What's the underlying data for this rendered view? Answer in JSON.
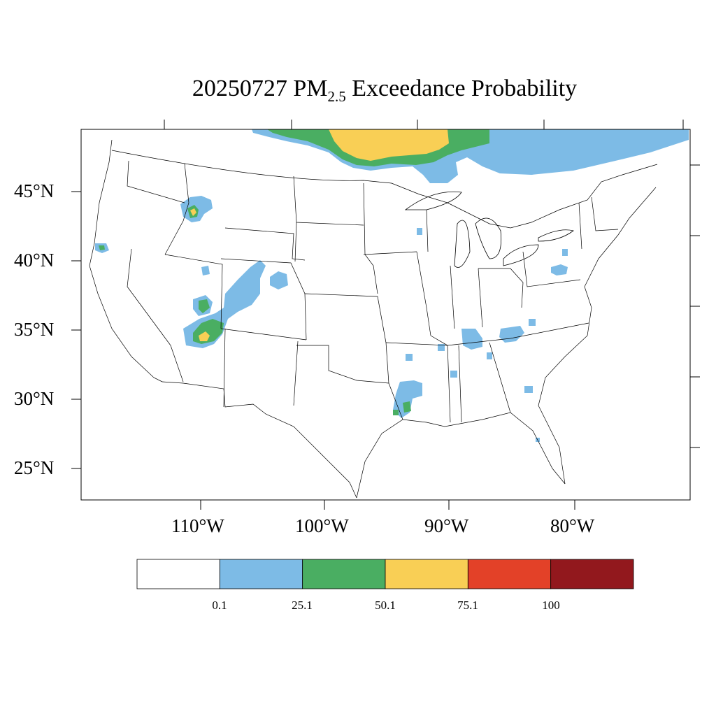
{
  "title": {
    "prefix": "20250727 PM",
    "subscript": "2.5",
    "suffix": " Exceedance Probability"
  },
  "lat_labels": [
    "45°N",
    "40°N",
    "35°N",
    "30°N",
    "25°N"
  ],
  "lon_labels": [
    "110°W",
    "100°W",
    "90°W",
    "80°W"
  ],
  "legend": {
    "bins": [
      {
        "color": "#ffffff"
      },
      {
        "color": "#7dbbe6"
      },
      {
        "color": "#4aae62"
      },
      {
        "color": "#f9cf55"
      },
      {
        "color": "#e34128"
      },
      {
        "color": "#92181d"
      }
    ],
    "labels": [
      "0.1",
      "25.1",
      "50.1",
      "75.1",
      "100"
    ]
  },
  "colors": {
    "blue": "#7dbbe6",
    "green": "#4aae62",
    "yellow": "#f9cf55",
    "red": "#e34128",
    "darkred": "#92181d",
    "outline": "#000000"
  }
}
